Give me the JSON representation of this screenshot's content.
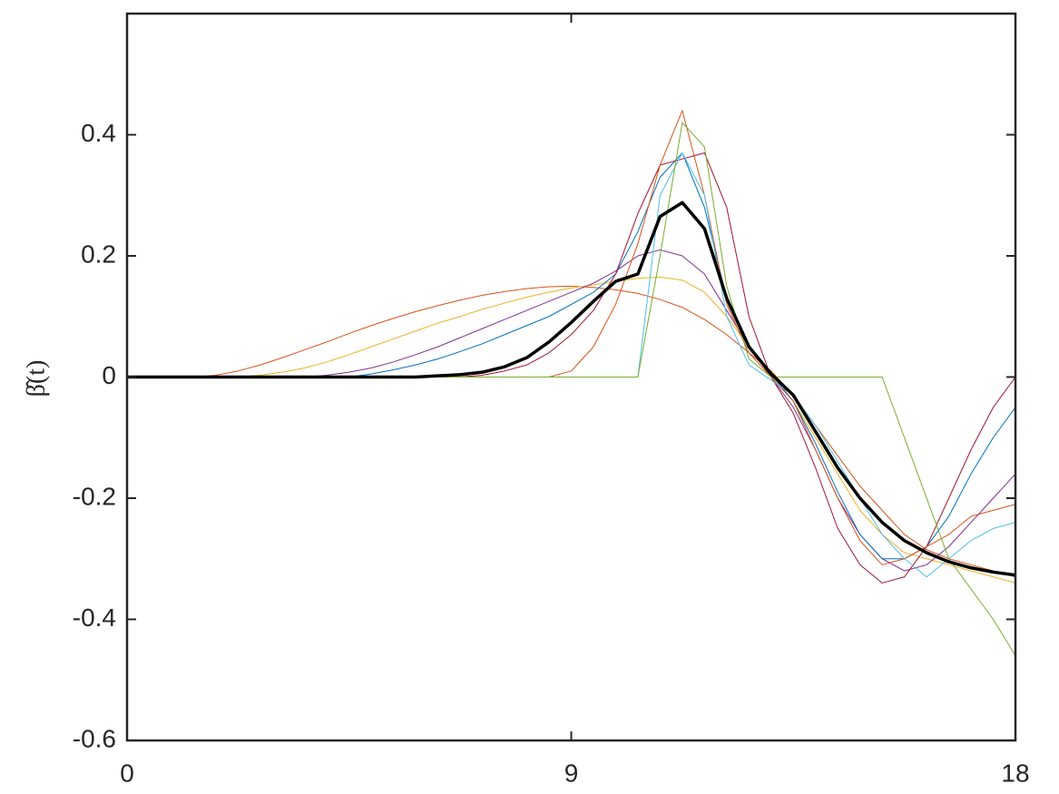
{
  "chart_data": {
    "type": "line",
    "y_label": "β̂(t)",
    "x": [
      0,
      0.45,
      0.9,
      1.35,
      1.8,
      2.25,
      2.7,
      3.15,
      3.6,
      4.05,
      4.5,
      4.95,
      5.4,
      5.85,
      6.3,
      6.75,
      7.2,
      7.65,
      8.1,
      8.55,
      9,
      9.45,
      9.9,
      10.35,
      10.8,
      11.25,
      11.7,
      12.15,
      12.6,
      13.05,
      13.5,
      13.95,
      14.4,
      14.85,
      15.3,
      15.75,
      16.2,
      16.65,
      17.1,
      17.55,
      18
    ],
    "series": [
      {
        "color": "#D95319",
        "linewidth": 1,
        "values": [
          0,
          0,
          0,
          0,
          0.003,
          0.01,
          0.02,
          0.032,
          0.045,
          0.058,
          0.072,
          0.085,
          0.097,
          0.108,
          0.118,
          0.127,
          0.135,
          0.141,
          0.146,
          0.149,
          0.15,
          0.148,
          0.144,
          0.138,
          0.128,
          0.115,
          0.095,
          0.07,
          0.04,
          0.01,
          -0.03,
          -0.08,
          -0.13,
          -0.18,
          -0.22,
          -0.26,
          -0.285,
          -0.3,
          -0.31,
          -0.32,
          -0.33
        ]
      },
      {
        "color": "#EDB120",
        "linewidth": 1,
        "values": [
          0,
          0,
          0,
          0,
          0,
          0,
          0.003,
          0.008,
          0.015,
          0.025,
          0.037,
          0.05,
          0.063,
          0.076,
          0.089,
          0.1,
          0.112,
          0.122,
          0.132,
          0.14,
          0.147,
          0.152,
          0.158,
          0.163,
          0.165,
          0.16,
          0.14,
          0.1,
          0.05,
          0.005,
          -0.04,
          -0.1,
          -0.16,
          -0.22,
          -0.26,
          -0.29,
          -0.3,
          -0.31,
          -0.32,
          -0.33,
          -0.34
        ]
      },
      {
        "color": "#7E2F8E",
        "linewidth": 1,
        "values": [
          0,
          0,
          0,
          0,
          0,
          0,
          0,
          0,
          0,
          0.003,
          0.008,
          0.015,
          0.025,
          0.037,
          0.05,
          0.065,
          0.08,
          0.095,
          0.11,
          0.125,
          0.14,
          0.155,
          0.175,
          0.2,
          0.21,
          0.2,
          0.17,
          0.11,
          0.05,
          0,
          -0.05,
          -0.12,
          -0.2,
          -0.26,
          -0.3,
          -0.32,
          -0.31,
          -0.28,
          -0.24,
          -0.2,
          -0.16
        ]
      },
      {
        "color": "#0072BD",
        "linewidth": 1,
        "values": [
          0,
          0,
          0,
          0,
          0,
          0,
          0,
          0,
          0,
          0,
          0,
          0.005,
          0.012,
          0.02,
          0.03,
          0.042,
          0.055,
          0.07,
          0.085,
          0.1,
          0.12,
          0.14,
          0.17,
          0.24,
          0.33,
          0.37,
          0.28,
          0.13,
          0.05,
          0.005,
          -0.04,
          -0.11,
          -0.19,
          -0.26,
          -0.3,
          -0.3,
          -0.28,
          -0.23,
          -0.16,
          -0.1,
          -0.05
        ]
      },
      {
        "color": "#A2142F",
        "linewidth": 1,
        "values": [
          0,
          0,
          0,
          0,
          0,
          0,
          0,
          0,
          0,
          0,
          0,
          0,
          0,
          0,
          0,
          0,
          0.003,
          0.01,
          0.02,
          0.04,
          0.07,
          0.11,
          0.17,
          0.27,
          0.35,
          0.36,
          0.37,
          0.28,
          0.1,
          0,
          -0.06,
          -0.15,
          -0.25,
          -0.31,
          -0.34,
          -0.33,
          -0.28,
          -0.2,
          -0.12,
          -0.05,
          0
        ]
      },
      {
        "color": "#D95319",
        "linewidth": 1,
        "values": [
          0,
          0,
          0,
          0,
          0,
          0,
          0,
          0,
          0,
          0,
          0,
          0,
          0,
          0,
          0,
          0,
          0,
          0,
          0,
          0,
          0.01,
          0.05,
          0.12,
          0.22,
          0.35,
          0.44,
          0.3,
          0.12,
          0.04,
          0,
          -0.04,
          -0.12,
          -0.2,
          -0.27,
          -0.31,
          -0.3,
          -0.28,
          -0.26,
          -0.23,
          -0.22,
          -0.21
        ]
      },
      {
        "color": "#4DBEEE",
        "linewidth": 1,
        "values": [
          0,
          0,
          0,
          0,
          0,
          0,
          0,
          0,
          0,
          0,
          0,
          0,
          0,
          0,
          0,
          0,
          0,
          0,
          0,
          0,
          0,
          0,
          0,
          0,
          0.3,
          0.37,
          0.3,
          0.1,
          0.02,
          -0.005,
          -0.03,
          -0.08,
          -0.14,
          -0.2,
          -0.26,
          -0.3,
          -0.33,
          -0.3,
          -0.27,
          -0.25,
          -0.24
        ]
      },
      {
        "color": "#77AC30",
        "linewidth": 1,
        "values": [
          0,
          0,
          0,
          0,
          0,
          0,
          0,
          0,
          0,
          0,
          0,
          0,
          0,
          0,
          0,
          0,
          0,
          0,
          0,
          0,
          0,
          0,
          0,
          0,
          0.2,
          0.42,
          0.38,
          0.15,
          0.03,
          0,
          0,
          0,
          0,
          0,
          0,
          -0.1,
          -0.2,
          -0.3,
          -0.35,
          -0.4,
          -0.46
        ]
      },
      {
        "color": "#000000",
        "linewidth": 3.5,
        "values": [
          0,
          0,
          0,
          0,
          0,
          0,
          0,
          0,
          0,
          0,
          0,
          0,
          0,
          0,
          0.002,
          0.004,
          0.008,
          0.017,
          0.032,
          0.058,
          0.09,
          0.125,
          0.158,
          0.17,
          0.265,
          0.288,
          0.245,
          0.13,
          0.05,
          0.005,
          -0.03,
          -0.09,
          -0.15,
          -0.2,
          -0.24,
          -0.27,
          -0.29,
          -0.305,
          -0.315,
          -0.322,
          -0.327
        ]
      }
    ],
    "xlim": [
      0,
      18
    ],
    "xticks": [
      0,
      9,
      18
    ],
    "ylim": [
      -0.6,
      0.6
    ],
    "yticks": [
      -0.6,
      -0.4,
      -0.2,
      0,
      0.2,
      0.4
    ]
  }
}
